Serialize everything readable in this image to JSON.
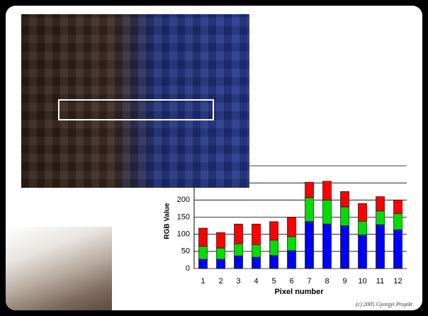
{
  "chart_data": {
    "type": "stacked-bar",
    "y_label": "RGB Value",
    "x_label": "Pixel number",
    "categories": [
      "1",
      "2",
      "3",
      "4",
      "5",
      "6",
      "7",
      "8",
      "9",
      "10",
      "11",
      "12"
    ],
    "series": [
      {
        "color": "#0000ff",
        "values": [
          27,
          27,
          37,
          33,
          38,
          52,
          137,
          130,
          125,
          98,
          128,
          113
        ]
      },
      {
        "color": "#00dd00",
        "values": [
          38,
          33,
          35,
          37,
          45,
          41,
          70,
          70,
          55,
          40,
          40,
          47
        ]
      },
      {
        "color": "#ff0000",
        "values": [
          53,
          45,
          58,
          60,
          54,
          57,
          45,
          55,
          45,
          52,
          42,
          40
        ]
      }
    ],
    "ylim": [
      0,
      300
    ],
    "yticks": [
      0,
      50,
      100,
      150,
      200,
      250,
      300
    ],
    "grid": true
  },
  "footer": "(c) 2005 Gyorgyi Projekt"
}
